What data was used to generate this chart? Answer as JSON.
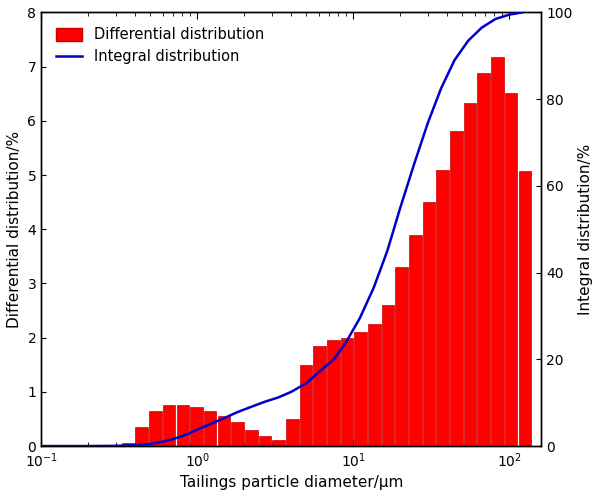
{
  "bar_centers": [
    0.36,
    0.44,
    0.54,
    0.66,
    0.81,
    0.99,
    1.21,
    1.48,
    1.81,
    2.22,
    2.71,
    3.32,
    4.06,
    4.97,
    6.08,
    7.44,
    9.1,
    11.13,
    13.62,
    16.67,
    20.4,
    24.96,
    30.55,
    37.38,
    45.74,
    55.98,
    68.51,
    83.84,
    102.6,
    125.6
  ],
  "bar_heights": [
    0.05,
    0.35,
    0.65,
    0.75,
    0.75,
    0.72,
    0.65,
    0.55,
    0.45,
    0.3,
    0.18,
    0.12,
    0.5,
    1.5,
    1.85,
    1.95,
    2.0,
    2.1,
    2.25,
    2.6,
    3.3,
    3.9,
    4.5,
    5.1,
    5.82,
    6.33,
    6.88,
    7.17,
    6.52,
    5.08
  ],
  "integral_x": [
    0.1,
    0.2,
    0.3,
    0.4,
    0.5,
    0.6,
    0.7,
    0.8,
    0.9,
    1.0,
    1.2,
    1.5,
    1.8,
    2.2,
    2.7,
    3.3,
    4.0,
    5.0,
    6.0,
    7.5,
    9.0,
    11.0,
    13.5,
    16.5,
    20.0,
    24.5,
    30.0,
    36.5,
    44.5,
    54.5,
    66.5,
    81.5,
    100.0,
    120.0
  ],
  "integral_y": [
    0.0,
    0.0,
    0.05,
    0.2,
    0.5,
    1.0,
    1.6,
    2.3,
    3.0,
    3.8,
    5.0,
    6.5,
    7.8,
    9.0,
    10.2,
    11.2,
    12.5,
    14.5,
    17.0,
    20.0,
    24.0,
    29.5,
    36.5,
    45.0,
    55.0,
    65.0,
    74.5,
    82.5,
    89.0,
    93.5,
    96.5,
    98.5,
    99.5,
    100.0
  ],
  "bar_color": "#FF0000",
  "bar_edge_color": "#CC0000",
  "line_color": "#0000CC",
  "xlabel": "Tailings particle diameter/μm",
  "ylabel_left": "Differential distribution/%",
  "ylabel_right": "Integral distribution/%",
  "legend_diff": "Differential distribution",
  "legend_int": "Integral distribution",
  "xlim": [
    0.1,
    160.0
  ],
  "ylim_left": [
    0,
    8
  ],
  "ylim_right": [
    0,
    100
  ],
  "yticks_left": [
    0,
    1,
    2,
    3,
    4,
    5,
    6,
    7,
    8
  ],
  "yticks_right": [
    0,
    20,
    40,
    60,
    80,
    100
  ],
  "background_color": "#FFFFFF",
  "line_width": 1.8
}
